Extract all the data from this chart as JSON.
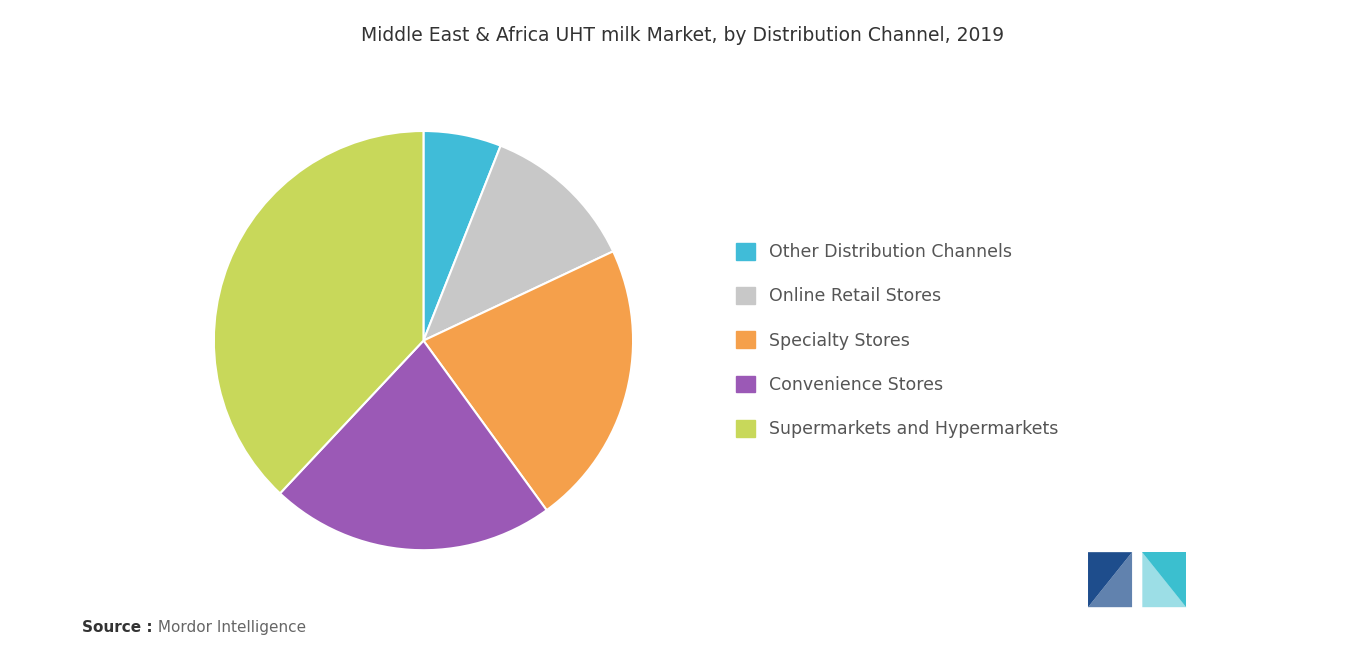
{
  "title": "Middle East & Africa UHT milk Market, by Distribution Channel, 2019",
  "labels": [
    "Other Distribution Channels",
    "Online Retail Stores",
    "Specialty Stores",
    "Convenience Stores",
    "Supermarkets and Hypermarkets"
  ],
  "values": [
    6,
    12,
    22,
    22,
    38
  ],
  "colors": [
    "#40BCD8",
    "#C8C8C8",
    "#F5A04B",
    "#9B59B6",
    "#C8D85A"
  ],
  "startangle": 90,
  "counterclock": false,
  "source_label_bold": "Source :",
  "source_label_normal": " Mordor Intelligence",
  "background_color": "#FFFFFF",
  "title_fontsize": 13.5,
  "legend_fontsize": 12.5,
  "source_fontsize": 11,
  "legend_text_color": "#555555",
  "title_color": "#333333",
  "logo_dark_color": "#1E4D8C",
  "logo_teal_color": "#3BBFCF"
}
